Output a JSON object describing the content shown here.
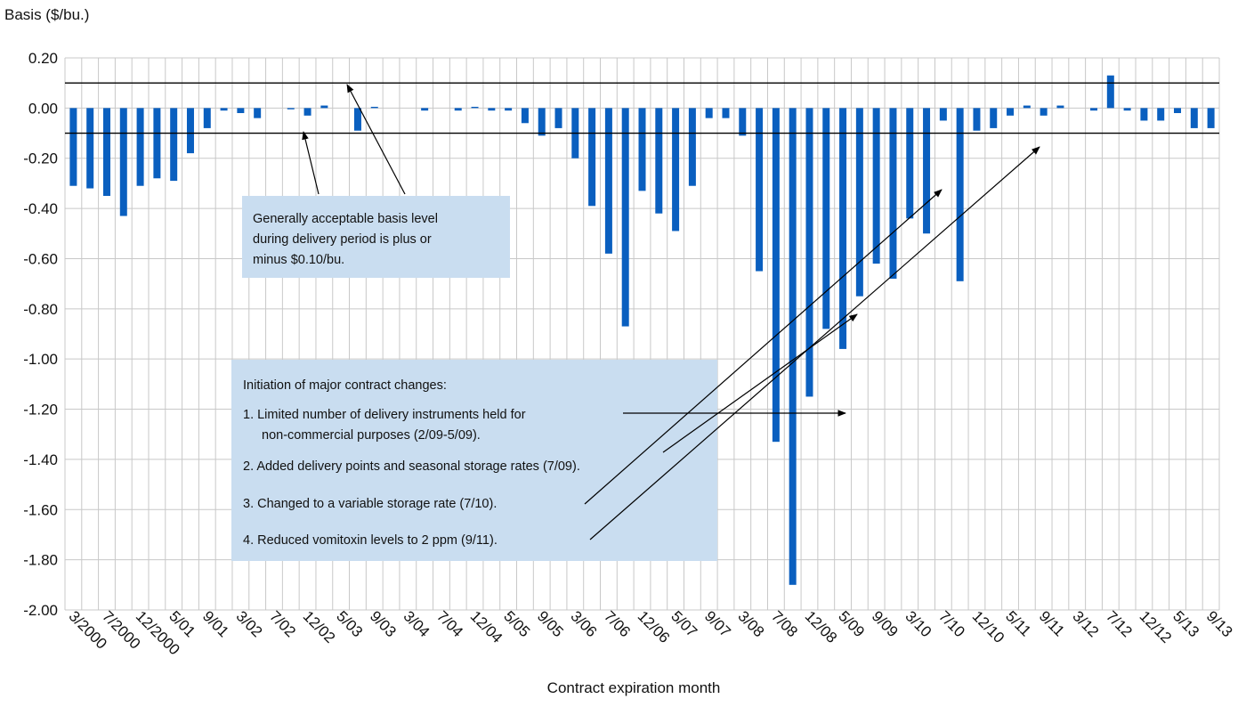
{
  "chart_data": {
    "type": "bar",
    "y_axis_label": "Basis ($/bu.)",
    "x_axis_label": "Contract expiration month",
    "categories": [
      "3/2000",
      null,
      "7/2000",
      null,
      "12/2000",
      null,
      "5/01",
      null,
      "9/01",
      null,
      "3/02",
      null,
      "7/02",
      null,
      "12/02",
      null,
      "5/03",
      null,
      "9/03",
      null,
      "3/04",
      null,
      "7/04",
      null,
      "12/04",
      null,
      "5/05",
      null,
      "9/05",
      null,
      "3/06",
      null,
      "7/06",
      null,
      "12/06",
      null,
      "5/07",
      null,
      "9/07",
      null,
      "3/08",
      null,
      "7/08",
      null,
      "12/08",
      null,
      "5/09",
      null,
      "9/09",
      null,
      "3/10",
      null,
      "7/10",
      null,
      "12/10",
      null,
      "5/11",
      null,
      "9/11",
      null,
      "3/12",
      null,
      "7/12",
      null,
      "12/12",
      null,
      "5/13",
      null,
      "9/13"
    ],
    "values": [
      -0.31,
      -0.32,
      -0.35,
      -0.43,
      -0.31,
      -0.28,
      -0.29,
      -0.18,
      -0.08,
      -0.01,
      -0.02,
      -0.04,
      0,
      -0.005,
      -0.03,
      0.01,
      0,
      -0.09,
      0.005,
      0,
      0,
      -0.01,
      0,
      -0.01,
      0.005,
      -0.01,
      -0.01,
      -0.06,
      -0.11,
      -0.08,
      -0.2,
      -0.39,
      -0.58,
      -0.87,
      -0.33,
      -0.42,
      -0.49,
      -0.31,
      -0.04,
      -0.04,
      -0.11,
      -0.65,
      -1.33,
      -1.9,
      -1.15,
      -0.88,
      -0.96,
      -0.75,
      -0.62,
      -0.68,
      -0.44,
      -0.5,
      -0.05,
      -0.69,
      -0.09,
      -0.08,
      -0.03,
      0.01,
      -0.03,
      0.01,
      0,
      -0.01,
      0.13,
      -0.01,
      -0.05,
      -0.05,
      -0.02,
      -0.08,
      -0.08
    ],
    "color": "#0a5fbf",
    "ylim": [
      -2.0,
      0.2
    ],
    "yticks": [
      {
        "value": 0.2,
        "label": "0.20"
      },
      {
        "value": 0,
        "label": "0.00"
      },
      {
        "value": -0.2,
        "label": "-0.20"
      },
      {
        "value": -0.4,
        "label": "-0.40"
      },
      {
        "value": -0.6,
        "label": "-0.60"
      },
      {
        "value": -0.8,
        "label": "-0.80"
      },
      {
        "value": -1.0,
        "label": "-1.00"
      },
      {
        "value": -1.2,
        "label": "-1.20"
      },
      {
        "value": -1.4,
        "label": "-1.40"
      },
      {
        "value": -1.6,
        "label": "-1.60"
      },
      {
        "value": -1.8,
        "label": "-1.80"
      },
      {
        "value": -2.0,
        "label": "-2.00"
      }
    ],
    "reference_lines": [
      0.1,
      -0.1
    ],
    "grid": true,
    "annotations": [
      {
        "lines": [
          "Generally acceptable basis level",
          "during delivery period is plus or",
          "minus $0.10/bu."
        ]
      },
      {
        "lines": [
          "Initiation of major contract changes:",
          "1. Limited number of delivery instruments  held for",
          "non-commercial purposes (2/09-5/09).",
          "2. Added delivery points and seasonal storage rates (7/09).",
          "3. Changed to a variable storage rate (7/10).",
          "4. Reduced vomitoxin levels to 2 ppm (9/11)."
        ]
      }
    ]
  }
}
